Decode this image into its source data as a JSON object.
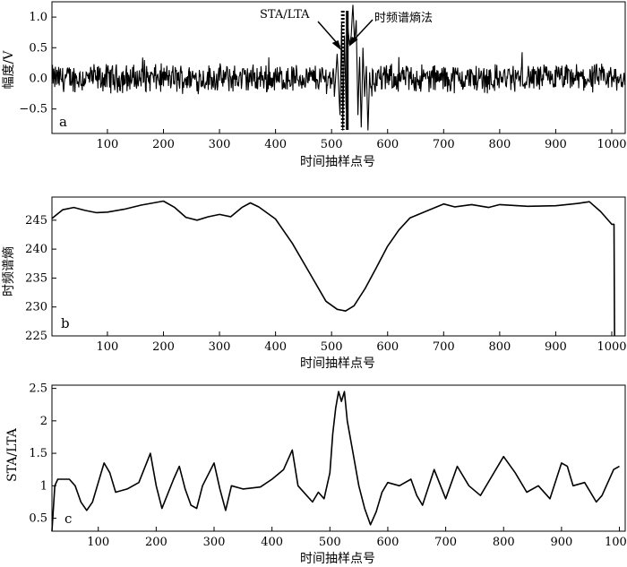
{
  "chart_data": [
    {
      "id": "a",
      "type": "line",
      "panel_label": "a",
      "xlabel": "时间抽样点号",
      "ylabel": "幅度/V",
      "xlim": [
        1,
        1024
      ],
      "ylim": [
        -0.9,
        1.25
      ],
      "xticks": [
        100,
        200,
        300,
        400,
        500,
        600,
        700,
        800,
        900,
        1000
      ],
      "yticks": [
        -0.5,
        0.0,
        0.5,
        1.0
      ],
      "ytick_labels": [
        "−0.5",
        "0.0",
        "0.5",
        "1.0"
      ],
      "noise_amplitude": 0.2,
      "anomaly": {
        "x": [
          505,
          510,
          515,
          518,
          520,
          523,
          526,
          529,
          532,
          535,
          538,
          541,
          544,
          547,
          550,
          553,
          556,
          559,
          562,
          565,
          568
        ],
        "y": [
          -0.3,
          0.4,
          -0.6,
          0.9,
          -0.85,
          0.7,
          -0.5,
          0.85,
          0.55,
          0.7,
          1.2,
          0.6,
          0.95,
          -0.6,
          0.35,
          -0.8,
          0.5,
          -0.3,
          0.2,
          -0.85,
          0.1
        ]
      },
      "markers": [
        {
          "label": "STA/LTA",
          "x": 520,
          "style": "dotted"
        },
        {
          "label": "时频谱熵法",
          "x": 528,
          "style": "solid"
        }
      ]
    },
    {
      "id": "b",
      "type": "line",
      "panel_label": "b",
      "xlabel": "时间抽样点号",
      "ylabel": "时频谱熵",
      "xlim": [
        1,
        1024
      ],
      "ylim": [
        225,
        249
      ],
      "xticks": [
        100,
        200,
        300,
        400,
        500,
        600,
        700,
        800,
        900,
        1000
      ],
      "yticks": [
        225,
        230,
        235,
        240,
        245
      ],
      "series": [
        {
          "x": [
            1,
            20,
            40,
            60,
            80,
            100,
            130,
            160,
            200,
            220,
            240,
            260,
            280,
            300,
            320,
            340,
            355,
            370,
            400,
            430,
            460,
            490,
            510,
            525,
            540,
            560,
            580,
            600,
            620,
            640,
            670,
            700,
            720,
            750,
            780,
            800,
            850,
            900,
            940,
            960,
            980,
            1000,
            1004,
            1005
          ],
          "y": [
            245.3,
            246.8,
            247.2,
            246.7,
            246.3,
            246.4,
            246.9,
            247.6,
            248.3,
            247.2,
            245.5,
            245.0,
            245.6,
            246.0,
            245.6,
            247.2,
            248.0,
            247.3,
            245.2,
            241.0,
            236.0,
            231.0,
            229.6,
            229.3,
            230.2,
            233.2,
            236.8,
            240.5,
            243.3,
            245.4,
            246.6,
            247.8,
            247.3,
            247.7,
            247.2,
            247.7,
            247.4,
            247.5,
            247.9,
            248.2,
            246.5,
            244.3,
            244.3,
            225
          ]
        }
      ]
    },
    {
      "id": "c",
      "type": "line",
      "panel_label": "c",
      "xlabel": "时间抽样点号",
      "ylabel": "STA/LTA",
      "xlim": [
        20,
        1010
      ],
      "ylim": [
        0.3,
        2.55
      ],
      "xticks": [
        100,
        200,
        300,
        400,
        500,
        600,
        700,
        800,
        900,
        1000
      ],
      "yticks": [
        0.5,
        1.0,
        1.5,
        2.0,
        2.5
      ],
      "series": [
        {
          "x": [
            20,
            25,
            30,
            50,
            60,
            70,
            80,
            90,
            100,
            110,
            120,
            130,
            150,
            170,
            190,
            200,
            210,
            230,
            240,
            250,
            260,
            270,
            280,
            300,
            310,
            320,
            330,
            350,
            380,
            400,
            420,
            435,
            445,
            460,
            470,
            480,
            490,
            500,
            505,
            510,
            515,
            520,
            525,
            530,
            540,
            550,
            560,
            570,
            580,
            590,
            600,
            620,
            640,
            650,
            660,
            680,
            700,
            720,
            740,
            760,
            780,
            800,
            820,
            840,
            860,
            880,
            900,
            910,
            920,
            940,
            960,
            970,
            980,
            990,
            1000
          ],
          "y": [
            0.3,
            1.0,
            1.1,
            1.1,
            1.0,
            0.75,
            0.62,
            0.75,
            1.05,
            1.35,
            1.2,
            0.9,
            0.95,
            1.05,
            1.5,
            1.0,
            0.65,
            1.1,
            1.3,
            0.95,
            0.7,
            0.65,
            1.0,
            1.35,
            0.95,
            0.62,
            1.0,
            0.95,
            0.98,
            1.1,
            1.25,
            1.55,
            1.0,
            0.85,
            0.75,
            0.9,
            0.8,
            1.2,
            1.8,
            2.2,
            2.45,
            2.3,
            2.45,
            2.0,
            1.5,
            1.0,
            0.65,
            0.4,
            0.6,
            0.9,
            1.05,
            1.0,
            1.1,
            0.85,
            0.7,
            1.25,
            0.8,
            1.3,
            1.0,
            0.85,
            1.15,
            1.45,
            1.2,
            0.9,
            1.0,
            0.8,
            1.35,
            1.3,
            1.0,
            1.05,
            0.75,
            0.85,
            1.05,
            1.25,
            1.3
          ]
        }
      ]
    }
  ]
}
